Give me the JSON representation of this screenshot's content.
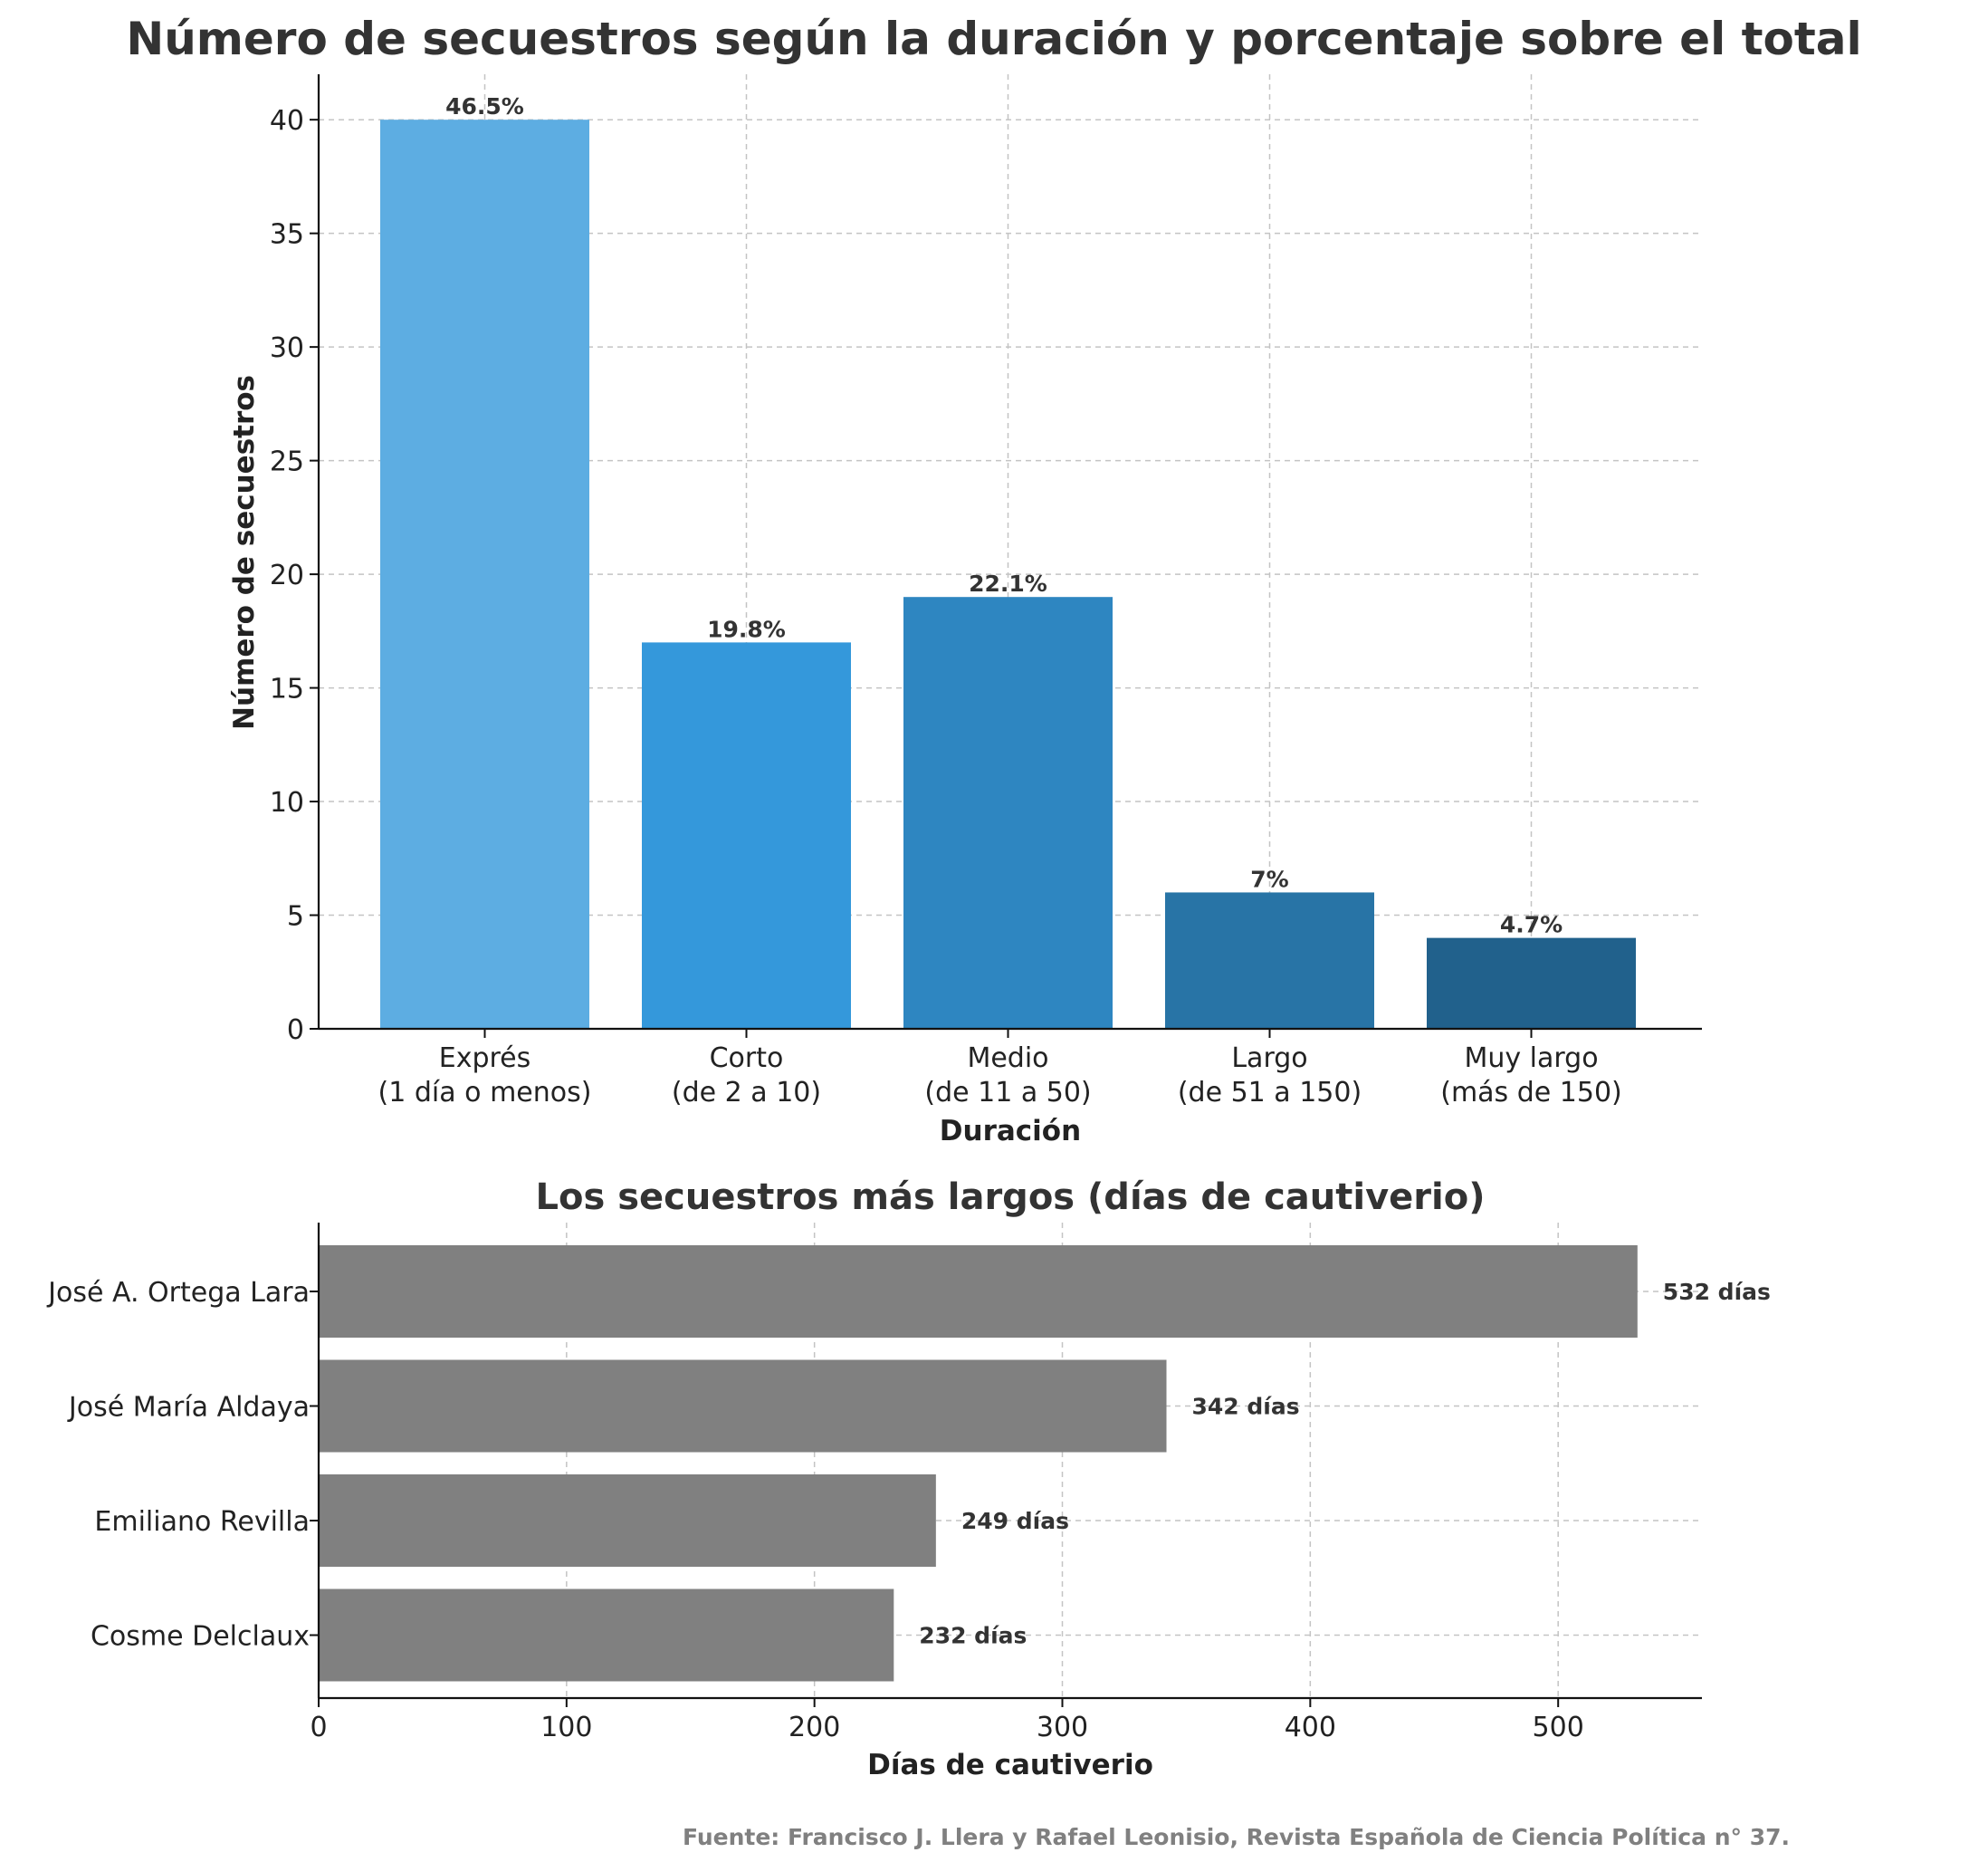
{
  "chart_data": [
    {
      "type": "bar",
      "title": "Número de secuestros según la duración y porcentaje sobre el total",
      "xlabel": "Duración",
      "ylabel": "Número de secuestros",
      "categories": [
        [
          "Exprés",
          "(1 día o menos)"
        ],
        [
          "Corto",
          "(de 2 a 10)"
        ],
        [
          "Medio",
          "(de 11 a 50)"
        ],
        [
          "Largo",
          "(de 51 a 150)"
        ],
        [
          "Muy largo",
          "(más de 150)"
        ]
      ],
      "values": [
        40,
        17,
        19,
        6,
        4
      ],
      "data_labels": [
        "46.5%",
        "19.8%",
        "22.1%",
        "7%",
        "4.7%"
      ],
      "colors": [
        "#5dade2",
        "#3498db",
        "#2e86c1",
        "#2874a6",
        "#21618c"
      ],
      "ylim": [
        0,
        42
      ],
      "yticks": [
        0,
        5,
        10,
        15,
        20,
        25,
        30,
        35,
        40
      ],
      "grid": true
    },
    {
      "type": "bar",
      "orientation": "horizontal",
      "title": "Los secuestros más largos (días de cautiverio)",
      "xlabel": "Días de cautiverio",
      "ylabel": "",
      "categories": [
        "José A. Ortega Lara",
        "José María Aldaya",
        "Emiliano Revilla",
        "Cosme Delclaux"
      ],
      "values": [
        532,
        342,
        249,
        232
      ],
      "data_labels": [
        "532 días",
        "342 días",
        "249 días",
        "232 días"
      ],
      "colors": [
        "#808080"
      ],
      "xlim": [
        0,
        558
      ],
      "xticks": [
        0,
        100,
        200,
        300,
        400,
        500
      ],
      "grid": true
    }
  ],
  "source": "Fuente: Francisco J. Llera y Rafael Leonisio, Revista Española de Ciencia Política n° 37."
}
